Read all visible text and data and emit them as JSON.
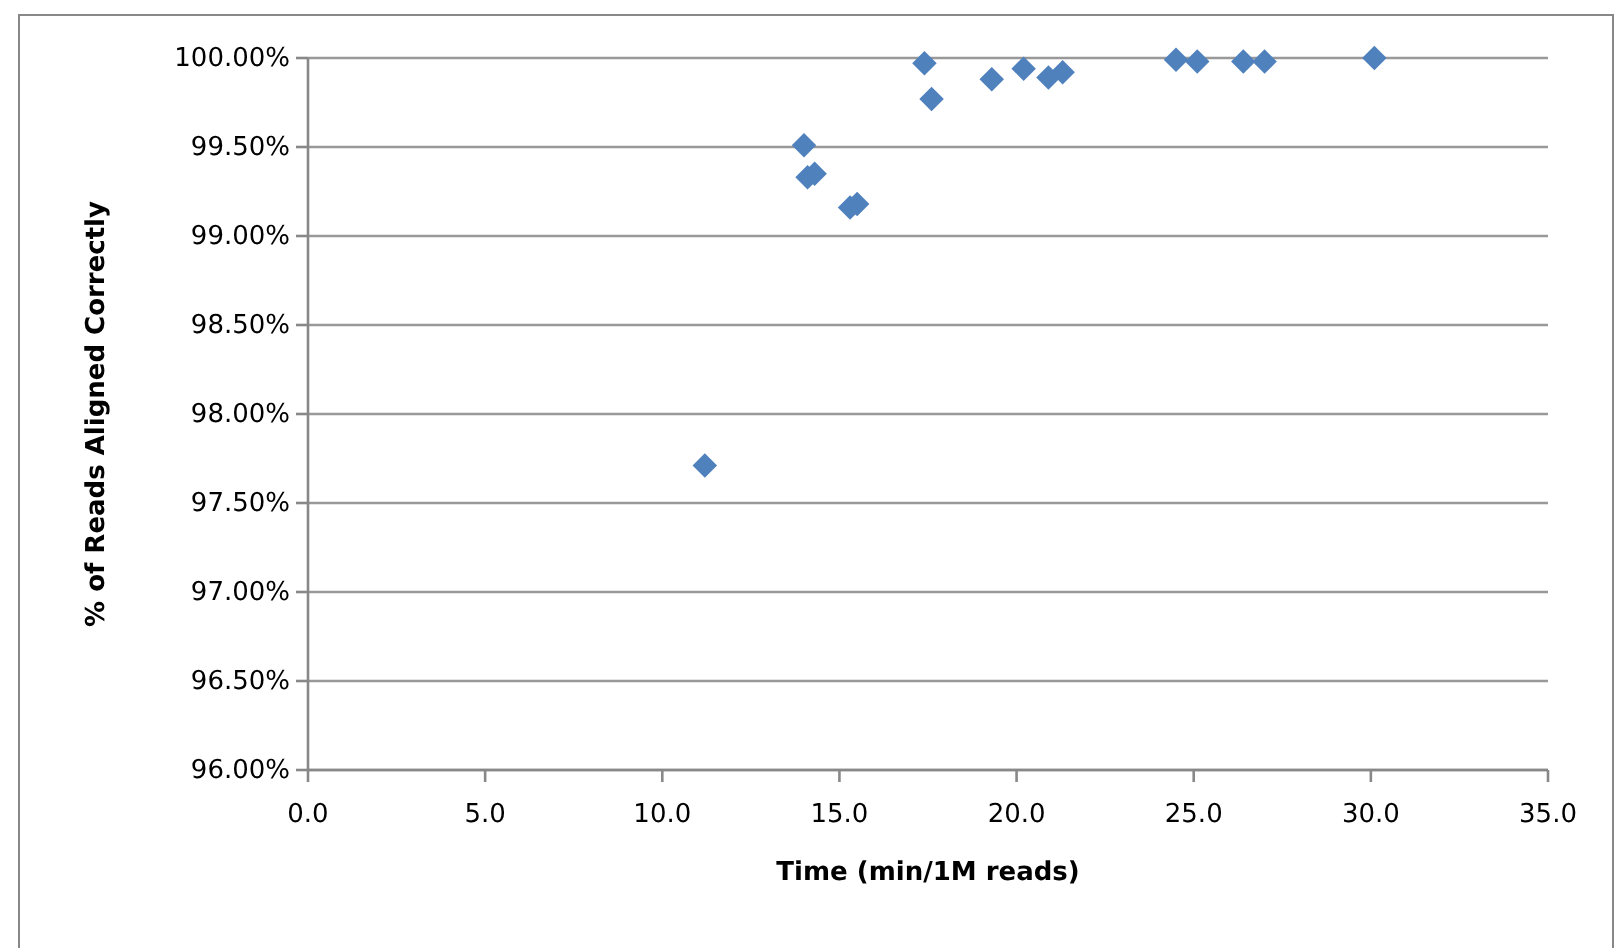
{
  "chart_data": {
    "type": "scatter",
    "xlabel": "Time (min/1M reads)",
    "ylabel": "% of Reads Aligned Correctly",
    "x": [
      11.2,
      14.0,
      14.1,
      14.3,
      15.3,
      15.5,
      17.4,
      17.6,
      19.3,
      20.2,
      20.9,
      21.3,
      24.5,
      25.1,
      26.4,
      27.0,
      30.1
    ],
    "series": [
      {
        "color": "#4f81bd",
        "values": [
          97.71,
          99.51,
          99.33,
          99.35,
          99.16,
          99.18,
          99.97,
          99.77,
          99.88,
          99.94,
          99.89,
          99.92,
          99.99,
          99.98,
          99.98,
          99.98,
          100.0
        ]
      }
    ],
    "xlim": [
      0,
      35
    ],
    "xticks": [
      {
        "value": 0,
        "label": "0.0"
      },
      {
        "value": 5,
        "label": "5.0"
      },
      {
        "value": 10,
        "label": "10.0"
      },
      {
        "value": 15,
        "label": "15.0"
      },
      {
        "value": 20,
        "label": "20.0"
      },
      {
        "value": 25,
        "label": "25.0"
      },
      {
        "value": 30,
        "label": "30.0"
      },
      {
        "value": 35,
        "label": "35.0"
      }
    ],
    "ylim": [
      96,
      100
    ],
    "yticks": [
      {
        "value": 96,
        "label": "96.00%"
      },
      {
        "value": 96.5,
        "label": "96.50%"
      },
      {
        "value": 97,
        "label": "97.00%"
      },
      {
        "value": 97.5,
        "label": "97.50%"
      },
      {
        "value": 98,
        "label": "98.00%"
      },
      {
        "value": 98.5,
        "label": "98.50%"
      },
      {
        "value": 99,
        "label": "99.00%"
      },
      {
        "value": 99.5,
        "label": "99.50%"
      },
      {
        "value": 100,
        "label": "100.00%"
      }
    ],
    "grid": "y",
    "marker": "diamond"
  }
}
